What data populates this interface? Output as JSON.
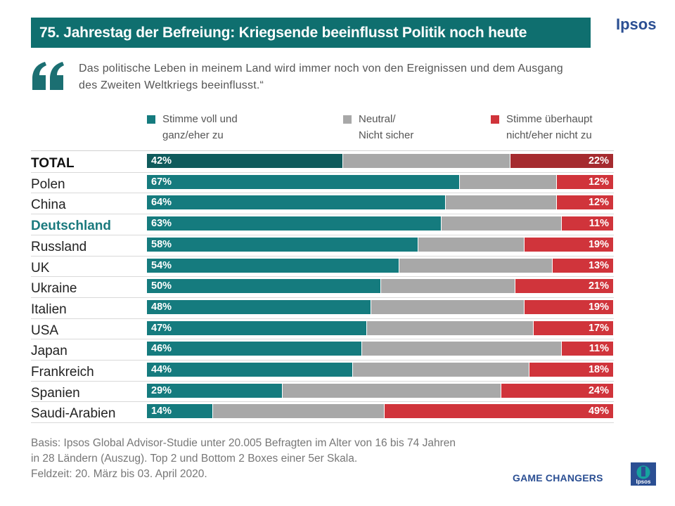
{
  "header": {
    "title": "75. Jahrestag der Befreiung: Kriegsende beeinflusst Politik noch heute",
    "logo": "Ipsos"
  },
  "quote": {
    "text": "Das politische Leben in meinem Land wird immer noch von den Ereignissen und dem Ausgang des Zweiten Weltkriegs beeinflusst.“",
    "icon": "quote-icon"
  },
  "colors": {
    "teal": "#157b7e",
    "teal_dark": "#0f5b5c",
    "grey": "#a8a8a8",
    "red": "#d0343b",
    "red_dark": "#a52b2f"
  },
  "chart_data": {
    "type": "bar",
    "orientation": "horizontal",
    "stacked": true,
    "title": "75. Jahrestag der Befreiung: Kriegsende beeinflusst Politik noch heute",
    "categories": [
      "TOTAL",
      "Polen",
      "China",
      "Deutschland",
      "Russland",
      "UK",
      "Ukraine",
      "Italien",
      "USA",
      "Japan",
      "Frankreich",
      "Spanien",
      "Saudi-Arabien"
    ],
    "series": [
      {
        "name": "Stimme voll und ganz/eher zu",
        "values": [
          42,
          67,
          64,
          63,
          58,
          54,
          50,
          48,
          47,
          46,
          44,
          29,
          14
        ],
        "labels": [
          "42%",
          "67%",
          "64%",
          "63%",
          "58%",
          "54%",
          "50%",
          "48%",
          "47%",
          "46%",
          "44%",
          "29%",
          "14%"
        ]
      },
      {
        "name": "Neutral/ Nicht sicher",
        "values": [
          36,
          21,
          24,
          26,
          23,
          33,
          29,
          33,
          36,
          43,
          38,
          47,
          37
        ],
        "labels": []
      },
      {
        "name": "Stimme überhaupt nicht/eher nicht zu",
        "values": [
          22,
          12,
          12,
          11,
          19,
          13,
          21,
          19,
          17,
          11,
          18,
          24,
          49
        ],
        "labels": [
          "22%",
          "12%",
          "12%",
          "11%",
          "19%",
          "13%",
          "21%",
          "19%",
          "17%",
          "11%",
          "18%",
          "24%",
          "49%"
        ]
      }
    ],
    "legend": [
      {
        "label_line1": "Stimme voll und",
        "label_line2": "ganz/eher zu"
      },
      {
        "label_line1": "Neutral/",
        "label_line2": "Nicht sicher"
      },
      {
        "label_line1": "Stimme überhaupt",
        "label_line2": "nicht/eher nicht zu"
      }
    ],
    "legend_position": "top",
    "xlim": [
      0,
      100
    ],
    "highlight": {
      "total": "TOTAL",
      "country": "Deutschland"
    }
  },
  "footer": {
    "line1": "Basis: Ipsos Global Advisor-Studie unter 20.005 Befragten im Alter von 16 bis 74 Jahren",
    "line2": "in 28 Ländern (Auszug). Top 2 und Bottom 2 Boxes einer 5er Skala.",
    "line3": "Feldzeit: 20. März bis 03. April 2020.",
    "tagline": "GAME CHANGERS",
    "logo_small": "Ipsos"
  }
}
